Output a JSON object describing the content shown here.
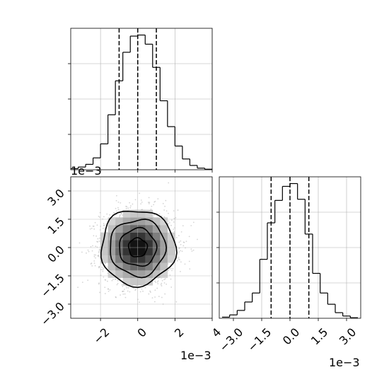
{
  "chart_data": [
    {
      "type": "histogram",
      "panel": "top-left (param 1 marginal)",
      "xlim": [
        -3.6,
        4.0
      ],
      "bins": [
        -3.6,
        -3.2,
        -2.8,
        -2.4,
        -2.0,
        -1.6,
        -1.2,
        -0.8,
        -0.4,
        0.0,
        0.4,
        0.8,
        1.2,
        1.6,
        2.0,
        2.4,
        2.8,
        3.2,
        3.6,
        4.0
      ],
      "counts": [
        2,
        5,
        10,
        22,
        48,
        102,
        165,
        218,
        248,
        250,
        233,
        190,
        128,
        80,
        44,
        20,
        8,
        3,
        1
      ],
      "quantile_lines": [
        -1.0,
        0.0,
        1.0
      ],
      "grid": true,
      "y_tick_labels_shown": false
    },
    {
      "type": "histogram",
      "panel": "bottom-right (param 2 marginal)",
      "xlim": [
        -3.75,
        3.75
      ],
      "bins": [
        -3.6,
        -3.2,
        -2.8,
        -2.4,
        -2.0,
        -1.6,
        -1.2,
        -0.8,
        -0.4,
        0.0,
        0.4,
        0.8,
        1.2,
        1.6,
        2.0,
        2.4,
        2.8,
        3.2,
        3.6
      ],
      "counts": [
        2,
        6,
        14,
        29,
        45,
        105,
        170,
        210,
        235,
        240,
        212,
        150,
        80,
        45,
        25,
        10,
        4,
        1
      ],
      "quantile_lines": [
        -1.0,
        0.0,
        1.0
      ],
      "xticks": [
        -3.0,
        -1.5,
        0.0,
        1.5,
        3.0
      ],
      "xtick_labels": [
        "−3.0",
        "−1.5",
        "0.0",
        "1.5",
        "3.0"
      ],
      "x_offset_label": "1e−3",
      "grid": true
    },
    {
      "type": "scatter-contour",
      "panel": "bottom-left (param 1 vs param 2 joint)",
      "xlim": [
        -3.6,
        4.0
      ],
      "ylim": [
        -3.75,
        3.75
      ],
      "xticks": [
        -2,
        0,
        2,
        4
      ],
      "xtick_labels": [
        "−2",
        "0",
        "2",
        "4"
      ],
      "yticks": [
        -3.0,
        -1.5,
        0.0,
        1.5,
        3.0
      ],
      "ytick_labels": [
        "−3.0",
        "−1.5",
        "0.0",
        "1.5",
        "3.0"
      ],
      "x_offset_label": "1e−3",
      "y_offset_label": "1e−3",
      "center": [
        0.0,
        0.0
      ],
      "sigma": [
        1.0,
        1.0
      ],
      "contour_levels_sigma": [
        0.5,
        1.0,
        1.5,
        2.0
      ],
      "grid": true
    }
  ]
}
